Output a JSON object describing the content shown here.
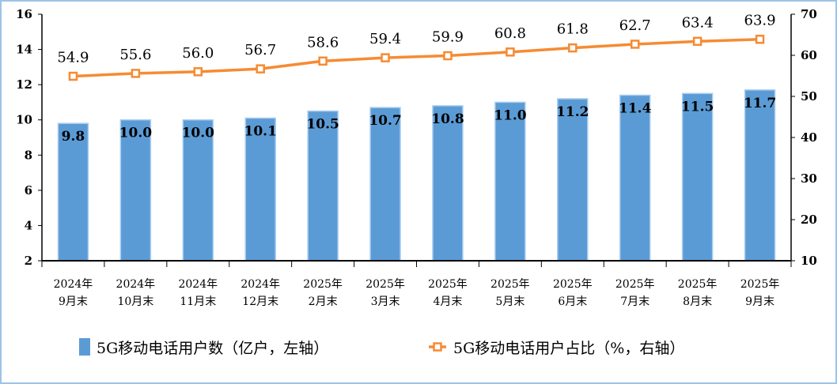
{
  "chart_data": {
    "type": "bar+line",
    "categories": [
      [
        "2024年",
        "9月末"
      ],
      [
        "2024年",
        "10月末"
      ],
      [
        "2024年",
        "11月末"
      ],
      [
        "2024年",
        "12月末"
      ],
      [
        "2025年",
        "2月末"
      ],
      [
        "2025年",
        "3月末"
      ],
      [
        "2025年",
        "4月末"
      ],
      [
        "2025年",
        "5月末"
      ],
      [
        "2025年",
        "6月末"
      ],
      [
        "2025年",
        "7月末"
      ],
      [
        "2025年",
        "8月末"
      ],
      [
        "2025年",
        "9月末"
      ]
    ],
    "series": [
      {
        "name": "5G移动电话用户数（亿户，左轴）",
        "type": "bar",
        "axis": "left",
        "color": "#5b9bd5",
        "values": [
          9.8,
          10.0,
          10.0,
          10.1,
          10.5,
          10.7,
          10.8,
          11.0,
          11.2,
          11.4,
          11.5,
          11.7
        ],
        "labels": [
          "9.8",
          "10.0",
          "10.0",
          "10.1",
          "10.5",
          "10.7",
          "10.8",
          "11.0",
          "11.2",
          "11.4",
          "11.5",
          "11.7"
        ]
      },
      {
        "name": "5G移动电话用户占比（%，右轴）",
        "type": "line",
        "axis": "right",
        "color": "#f68b33",
        "marker": "square",
        "values": [
          54.9,
          55.6,
          56.0,
          56.7,
          58.6,
          59.4,
          59.9,
          60.8,
          61.8,
          62.7,
          63.4,
          63.9
        ],
        "labels": [
          "54.9",
          "55.6",
          "56.0",
          "56.7",
          "58.6",
          "59.4",
          "59.9",
          "60.8",
          "61.8",
          "62.7",
          "63.4",
          "63.9"
        ]
      }
    ],
    "y_left": {
      "range": [
        2,
        16
      ],
      "ticks": [
        "2",
        "4",
        "6",
        "8",
        "10",
        "12",
        "14",
        "16"
      ]
    },
    "y_right": {
      "range": [
        10,
        70
      ],
      "ticks": [
        "10",
        "20",
        "30",
        "40",
        "50",
        "60",
        "70"
      ]
    },
    "grid": false,
    "legend": "bottom"
  }
}
